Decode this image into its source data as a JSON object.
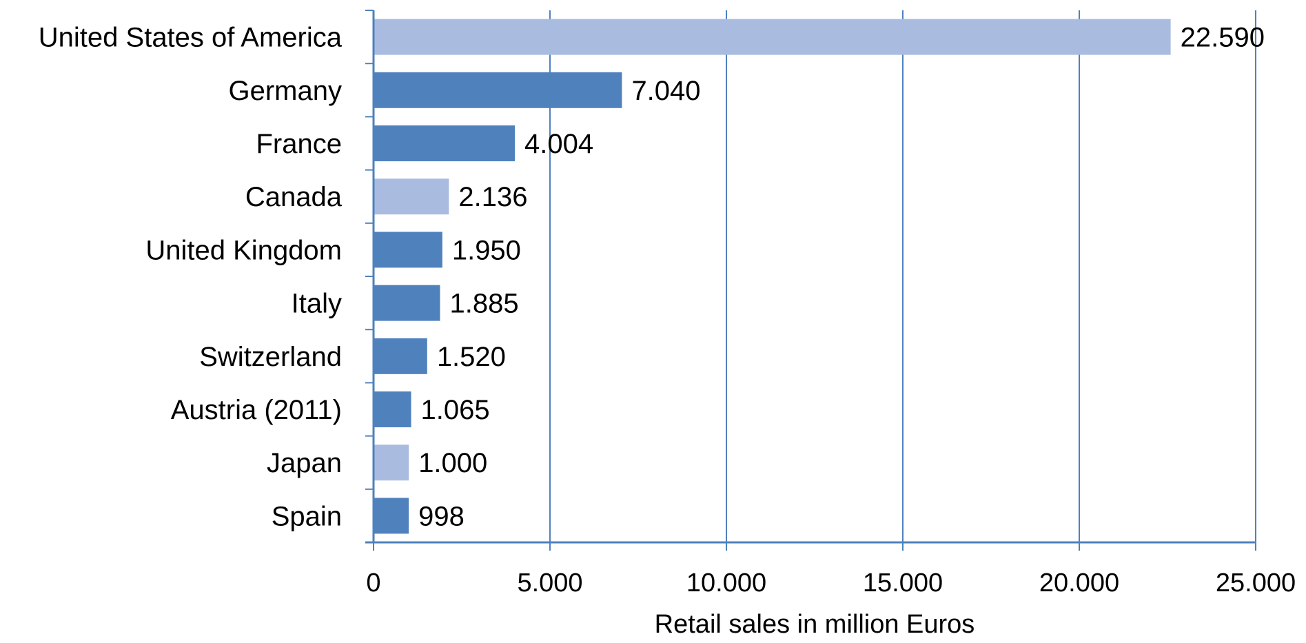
{
  "chart_data": {
    "type": "bar",
    "orientation": "horizontal",
    "title": "",
    "xlabel": "Retail sales in million Euros",
    "ylabel": "",
    "xlim": [
      0,
      25000
    ],
    "x_ticks": [
      0,
      5000,
      10000,
      15000,
      20000,
      25000
    ],
    "x_tick_labels": [
      "0",
      "5.000",
      "10.000",
      "15.000",
      "20.000",
      "25.000"
    ],
    "grid": "vertical",
    "legend": "none",
    "categories": [
      "United States of America",
      "Germany",
      "France",
      "Canada",
      "United Kingdom",
      "Italy",
      "Switzerland",
      "Austria (2011)",
      "Japan",
      "Spain"
    ],
    "values": [
      22590,
      7040,
      4004,
      2136,
      1950,
      1885,
      1520,
      1065,
      1000,
      998
    ],
    "data_labels": [
      "22.590",
      "7.040",
      "4.004",
      "2.136",
      "1.950",
      "1.885",
      "1.520",
      "1.065",
      "1.000",
      "998"
    ],
    "highlighted": [
      true,
      false,
      false,
      true,
      false,
      false,
      false,
      false,
      true,
      false
    ],
    "colors": {
      "bar": "#4F81BD",
      "bar_highlight": "#A9BCE0",
      "axis": "#4F81BD",
      "grid": "#4F81BD"
    }
  }
}
